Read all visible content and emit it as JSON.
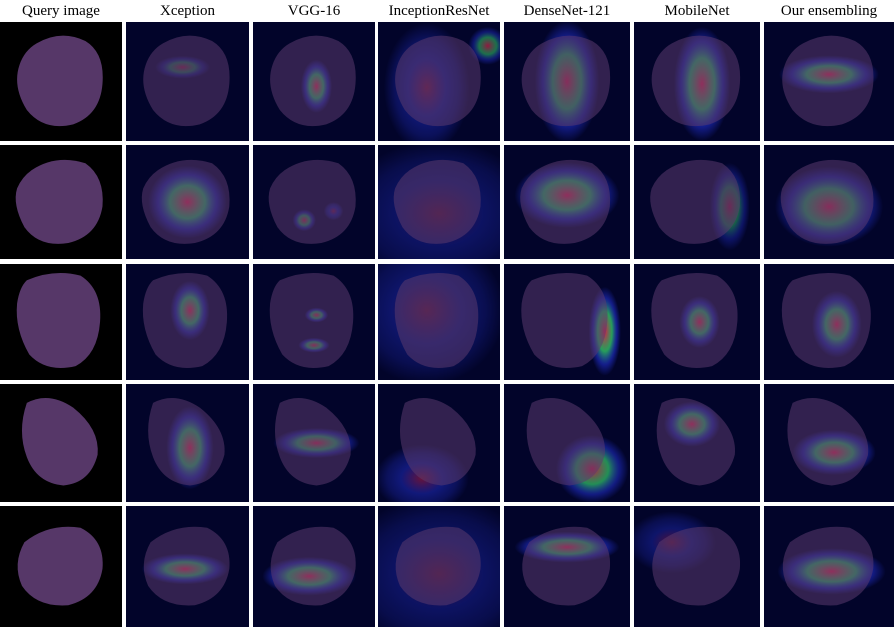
{
  "figure": {
    "columns": [
      {
        "label": "Query image",
        "kind": "query"
      },
      {
        "label": "Xception",
        "kind": "heatmap"
      },
      {
        "label": "VGG-16",
        "kind": "heatmap"
      },
      {
        "label": "InceptionResNet",
        "kind": "heatmap"
      },
      {
        "label": "DenseNet-121",
        "kind": "heatmap"
      },
      {
        "label": "MobileNet",
        "kind": "heatmap"
      },
      {
        "label": "Our ensembling",
        "kind": "heatmap"
      }
    ],
    "rows": 5,
    "colors": {
      "query_background": "#000000",
      "heatmap_background": "#02042a",
      "cell_fill": "#5b3a6e",
      "heat_low": "#2a3cff",
      "heat_mid": "#33d16a",
      "heat_high": "#d8234a",
      "separator": "#ffffff"
    }
  }
}
